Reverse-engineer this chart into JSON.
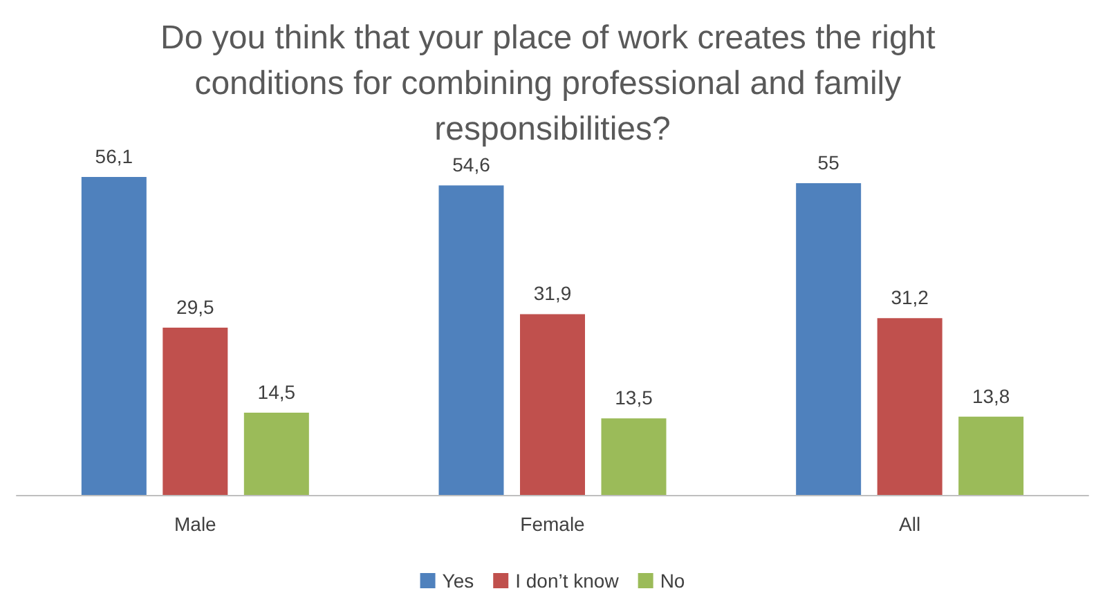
{
  "chart_data": {
    "type": "bar",
    "title": "Do you think that your place of work creates the right conditions for combining professional and family responsibilities?",
    "categories": [
      "Male",
      "Female",
      "All"
    ],
    "series": [
      {
        "name": "Yes",
        "color": "#4f81bd",
        "values": [
          56.1,
          54.6,
          55
        ],
        "value_labels": [
          "56,1",
          "54,6",
          "55"
        ]
      },
      {
        "name": "I don’t know",
        "color": "#c0504d",
        "values": [
          29.5,
          31.9,
          31.2
        ],
        "value_labels": [
          "29,5",
          "31,9",
          "31,2"
        ]
      },
      {
        "name": "No",
        "color": "#9bbb59",
        "values": [
          14.5,
          13.5,
          13.8
        ],
        "value_labels": [
          "14,5",
          "13,5",
          "13,8"
        ]
      }
    ],
    "legend": "bottom"
  }
}
